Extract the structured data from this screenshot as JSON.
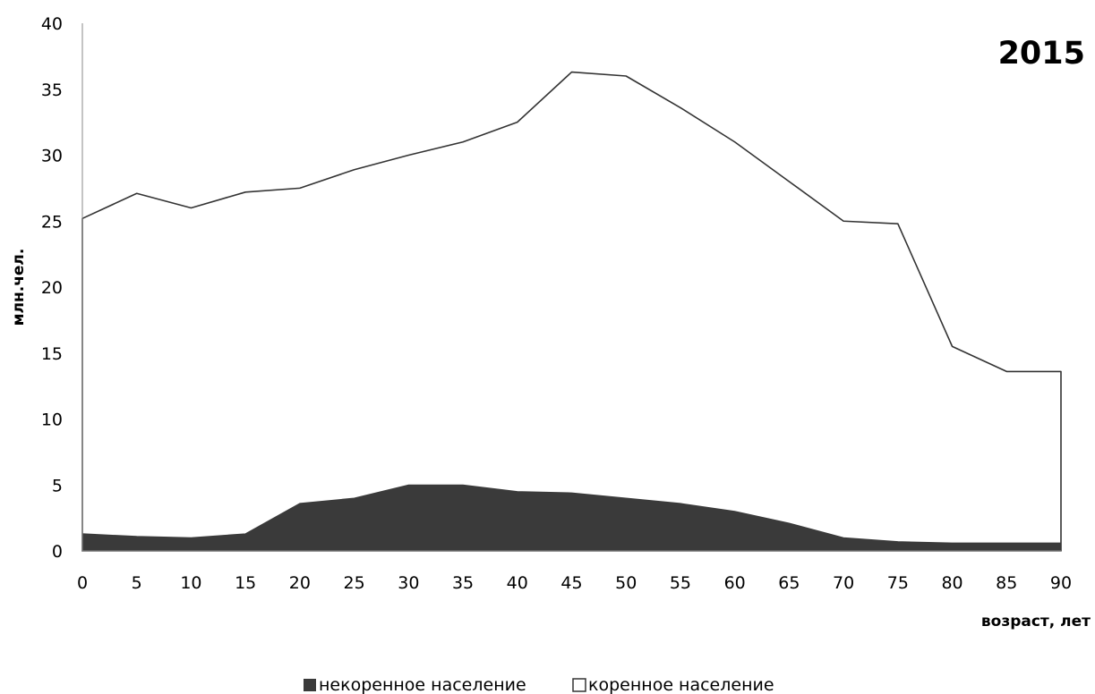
{
  "colors": {
    "non_indigenous": "#3a3a3a",
    "indigenous_fill": "#ffffff",
    "line": "#333333",
    "axis": "#888888"
  },
  "chart_data": {
    "type": "area",
    "stacked": false,
    "title": "2015",
    "xlabel": "возраст, лет",
    "ylabel": "млн.чел.",
    "xlim": [
      0,
      90
    ],
    "ylim": [
      0,
      40
    ],
    "x_ticks": [
      0,
      5,
      10,
      15,
      20,
      25,
      30,
      35,
      40,
      45,
      50,
      55,
      60,
      65,
      70,
      75,
      80,
      85,
      90
    ],
    "y_ticks": [
      0,
      5,
      10,
      15,
      20,
      25,
      30,
      35,
      40
    ],
    "grid": false,
    "legend_position": "bottom",
    "x": [
      0,
      5,
      10,
      15,
      20,
      25,
      30,
      35,
      40,
      45,
      50,
      55,
      60,
      65,
      70,
      75,
      80,
      85,
      90
    ],
    "series": [
      {
        "name": "коренное население",
        "values": [
          25.2,
          27.1,
          26.0,
          27.2,
          27.5,
          28.9,
          30.0,
          31.0,
          32.5,
          36.3,
          36.0,
          33.6,
          31.0,
          28.0,
          25.0,
          24.8,
          15.5,
          13.6,
          13.6
        ]
      },
      {
        "name": "некоренное население",
        "values": [
          1.3,
          1.1,
          1.0,
          1.3,
          3.6,
          4.0,
          5.0,
          5.0,
          4.5,
          4.4,
          4.0,
          3.6,
          3.0,
          2.1,
          1.0,
          0.7,
          0.6,
          0.6,
          0.6
        ]
      }
    ]
  }
}
